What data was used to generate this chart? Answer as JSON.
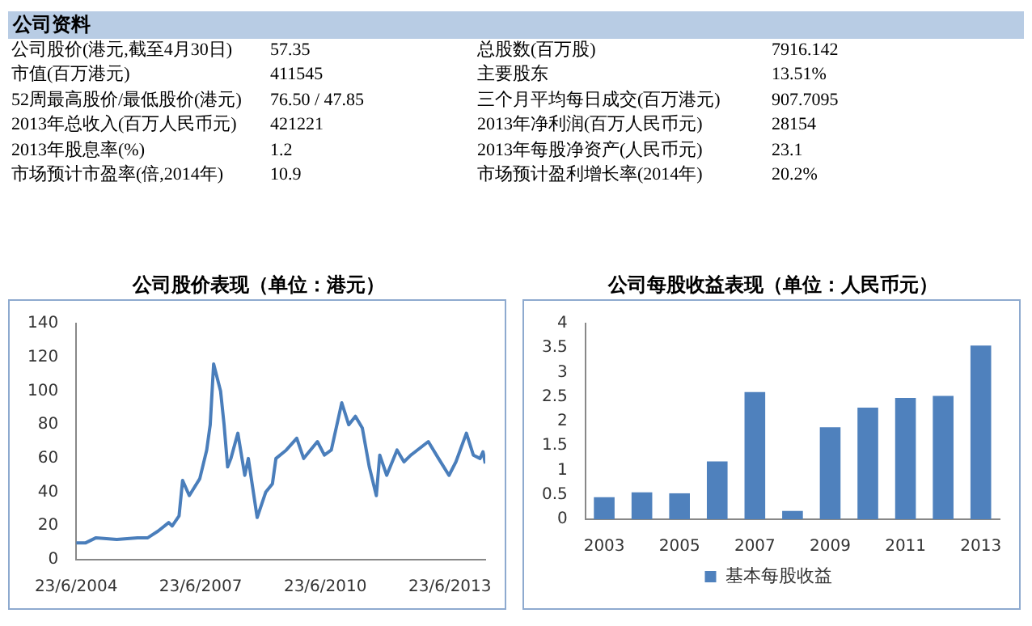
{
  "chart_data": [
    {
      "type": "other",
      "title": "公司资料",
      "annotations": [
        "公司股价(港元,截至4月30日)",
        "57.35",
        "总股数(百万股)",
        "7916.142",
        "市值(百万港元)",
        "411545",
        "主要股东",
        "13.51%",
        "52周最高股价/最低股价(港元)",
        "76.50 / 47.85",
        "三个月平均每日成交(百万港元)",
        "907.7095",
        "2013年总收入(百万人民币元)",
        "421221",
        "2013年净利润(百万人民币元)",
        "28154",
        "2013年股息率(%)",
        "1.2",
        "2013年每股净资产(人民币元)",
        "23.1",
        "市场预计市盈率(倍,2014年)",
        "10.9",
        "市场预计盈利增长率(2014年)",
        "20.2%"
      ]
    },
    {
      "type": "line",
      "title": "公司股价表现（单位：港元）",
      "x": [
        "2004-06-23",
        "2004-09-15",
        "2004-12-15",
        "2005-06-15",
        "2005-12-15",
        "2006-03-15",
        "2006-06-15",
        "2006-09-15",
        "2006-10-15",
        "2006-12-15",
        "2007-01-15",
        "2007-03-15",
        "2007-06-15",
        "2007-08-15",
        "2007-09-15",
        "2007-10-15",
        "2007-12-15",
        "2008-01-15",
        "2008-02-15",
        "2008-03-15",
        "2008-05-15",
        "2008-07-15",
        "2008-08-15",
        "2008-11-01",
        "2009-01-15",
        "2009-03-15",
        "2009-04-15",
        "2009-07-15",
        "2009-10-15",
        "2009-12-15",
        "2010-04-15",
        "2010-06-15",
        "2010-08-15",
        "2010-11-15",
        "2011-01-15",
        "2011-03-15",
        "2011-05-15",
        "2011-07-15",
        "2011-09-15",
        "2011-10-15",
        "2011-12-15",
        "2012-03-15",
        "2012-05-15",
        "2012-07-15",
        "2012-12-15",
        "2013-03-15",
        "2013-06-15",
        "2013-08-15",
        "2013-11-15",
        "2014-01-15",
        "2014-03-15",
        "2014-04-10",
        "2014-04-30"
      ],
      "series": [
        {
          "color": "#4a7ebb",
          "values": [
            10,
            10,
            13,
            12,
            13,
            13,
            17,
            22,
            20,
            26,
            47,
            38,
            48,
            65,
            80,
            116,
            100,
            80,
            55,
            60,
            75,
            50,
            60,
            25,
            40,
            45,
            60,
            65,
            72,
            60,
            70,
            62,
            65,
            93,
            80,
            85,
            78,
            55,
            38,
            62,
            50,
            65,
            58,
            62,
            70,
            60,
            50,
            58,
            75,
            62,
            60,
            64,
            57
          ]
        }
      ],
      "xlim": [
        "2004-06-23",
        "2014-04-30"
      ],
      "xticks": [
        {
          "value": "2004-06-23",
          "label": "23/6/2004"
        },
        {
          "value": "2007-06-23",
          "label": "23/6/2007"
        },
        {
          "value": "2010-06-23",
          "label": "23/6/2010"
        },
        {
          "value": "2013-06-23",
          "label": "23/6/2013"
        }
      ],
      "ylim": [
        0,
        140
      ],
      "yticks": [
        0,
        20,
        40,
        60,
        80,
        100,
        120,
        140
      ]
    },
    {
      "type": "bar",
      "title": "公司每股收益表现（单位：人民币元）",
      "categories": [
        "2003",
        null,
        "2005",
        null,
        "2007",
        null,
        "2009",
        null,
        "2011",
        null,
        "2013"
      ],
      "series": [
        {
          "name": "基本每股收益",
          "color": "#4f81bd",
          "values": [
            0.45,
            0.55,
            0.53,
            1.18,
            2.6,
            0.17,
            1.88,
            2.28,
            2.48,
            2.52,
            3.55
          ]
        }
      ],
      "ylim": [
        0,
        4
      ],
      "yticks": [
        0,
        0.5,
        1,
        1.5,
        2,
        2.5,
        3,
        3.5,
        4
      ],
      "legend": "bottom"
    }
  ]
}
